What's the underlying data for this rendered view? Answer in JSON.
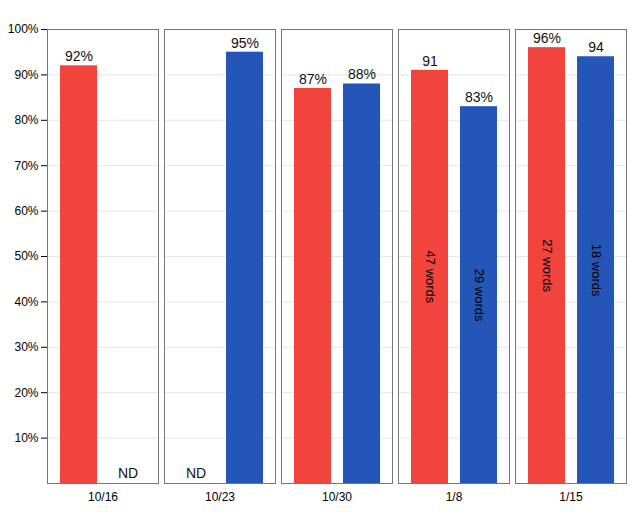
{
  "chart_data": {
    "type": "bar",
    "categories": [
      "10/16",
      "10/23",
      "10/30",
      "1/8",
      "1/15"
    ],
    "series": [
      {
        "color": "#f0443c",
        "values": [
          92,
          null,
          87,
          91,
          96
        ],
        "value_labels": [
          "92%",
          "ND",
          "87%",
          "91",
          "96%"
        ],
        "notes": [
          null,
          null,
          null,
          "47 words",
          "27 words"
        ]
      },
      {
        "color": "#2456b8",
        "values": [
          null,
          95,
          88,
          83,
          94
        ],
        "value_labels": [
          "ND",
          "95%",
          "88%",
          "83%",
          "94"
        ],
        "notes": [
          null,
          null,
          null,
          "29 words",
          "18 words"
        ]
      }
    ],
    "ylim": [
      0,
      100
    ],
    "yticks": [
      {
        "value": 10,
        "label": "10%"
      },
      {
        "value": 20,
        "label": "20%"
      },
      {
        "value": 30,
        "label": "30%"
      },
      {
        "value": 40,
        "label": "40%"
      },
      {
        "value": 50,
        "label": "50%"
      },
      {
        "value": 60,
        "label": "60%"
      },
      {
        "value": 70,
        "label": "70%"
      },
      {
        "value": 80,
        "label": "80%"
      },
      {
        "value": 90,
        "label": "90%"
      },
      {
        "value": 100,
        "label": "100%"
      }
    ],
    "grid": true,
    "data_labels": true
  }
}
